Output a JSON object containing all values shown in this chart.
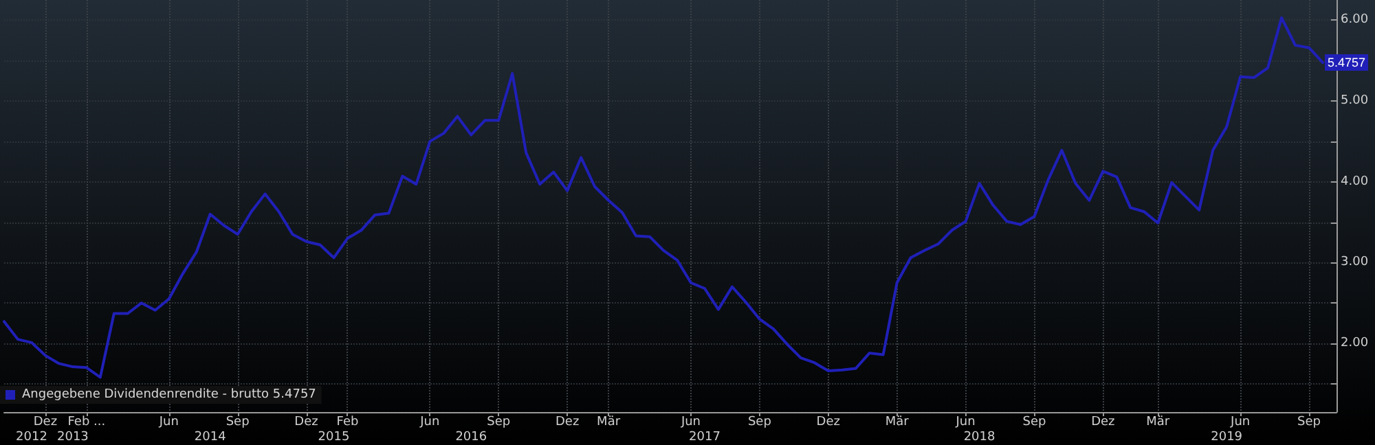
{
  "chart_data": {
    "type": "line",
    "categories": [
      null,
      null,
      "\n2012",
      "Dez",
      null,
      "\n2013",
      "Feb ...",
      null,
      null,
      null,
      null,
      null,
      "Jun",
      null,
      null,
      "\n2014",
      null,
      "Sep",
      null,
      null,
      null,
      null,
      "Dez",
      null,
      "\n2015",
      "Feb",
      null,
      null,
      null,
      null,
      null,
      "Jun",
      null,
      null,
      "\n2016",
      null,
      "Sep",
      null,
      null,
      null,
      null,
      "Dez",
      null,
      null,
      "Mär",
      null,
      null,
      null,
      null,
      null,
      "Jun",
      "\n2017",
      null,
      null,
      null,
      "Sep",
      null,
      null,
      null,
      null,
      "Dez",
      null,
      null,
      null,
      null,
      "Mär",
      null,
      null,
      null,
      null,
      "Jun",
      "\n2018",
      null,
      null,
      null,
      "Sep",
      null,
      null,
      null,
      null,
      "Dez",
      null,
      null,
      null,
      "Mär",
      null,
      null,
      null,
      null,
      "\n2019",
      "Jun",
      null,
      null,
      null,
      null,
      "Sep",
      null,
      null
    ],
    "series": [
      {
        "name": "Angegebene Dividendenrendite - brutto 5.4757",
        "color": "#2020b8",
        "values": [
          2.27,
          2.05,
          2.01,
          1.85,
          1.75,
          1.71,
          1.7,
          1.58,
          2.37,
          2.37,
          2.5,
          2.41,
          2.55,
          2.86,
          3.13,
          3.6,
          3.46,
          3.35,
          3.63,
          3.85,
          3.63,
          3.35,
          3.26,
          3.22,
          3.06,
          3.3,
          3.4,
          3.59,
          3.61,
          4.07,
          3.97,
          4.5,
          4.6,
          4.81,
          4.58,
          4.76,
          4.76,
          5.34,
          4.36,
          3.97,
          4.12,
          3.89,
          4.3,
          3.94,
          3.77,
          3.62,
          3.33,
          3.32,
          3.15,
          3.03,
          2.75,
          2.68,
          2.42,
          2.7,
          2.51,
          2.3,
          2.18,
          1.99,
          1.82,
          1.76,
          1.66,
          1.67,
          1.69,
          1.88,
          1.86,
          2.75,
          3.06,
          3.15,
          3.23,
          3.4,
          3.51,
          3.98,
          3.71,
          3.51,
          3.47,
          3.57,
          4.02,
          4.39,
          3.98,
          3.77,
          4.13,
          4.06,
          3.68,
          3.63,
          3.49,
          3.99,
          3.82,
          3.65,
          4.39,
          4.68,
          5.3,
          5.29,
          5.41,
          6.03,
          5.69,
          5.66,
          5.4757,
          null
        ],
        "value_labels": [
          null,
          null,
          null,
          null,
          null,
          null,
          null,
          null,
          null,
          null,
          null,
          null,
          null,
          null,
          null,
          null,
          null,
          null,
          null,
          null,
          null,
          null,
          null,
          null,
          null,
          null,
          null,
          null,
          null,
          null,
          null,
          null,
          null,
          null,
          null,
          null,
          null,
          null,
          null,
          null,
          null,
          null,
          null,
          null,
          null,
          null,
          null,
          null,
          null,
          null,
          null,
          null,
          null,
          null,
          null,
          null,
          null,
          null,
          null,
          null,
          null,
          null,
          null,
          null,
          null,
          null,
          null,
          null,
          null,
          null,
          null,
          null,
          null,
          null,
          null,
          null,
          null,
          null,
          null,
          null,
          null,
          null,
          null,
          null,
          null,
          null,
          null,
          null,
          null,
          null,
          null,
          null,
          null,
          null,
          null,
          null,
          "5.4757",
          null
        ]
      }
    ],
    "ylim": [
      1.15,
      6.25
    ],
    "yticks": [
      {
        "value": 1.5,
        "label": null
      },
      {
        "value": 2,
        "label": "2.00"
      },
      {
        "value": 2.5,
        "label": null
      },
      {
        "value": 3,
        "label": "3.00"
      },
      {
        "value": 3.5,
        "label": null
      },
      {
        "value": 4,
        "label": "4.00"
      },
      {
        "value": 4.5,
        "label": null
      },
      {
        "value": 5,
        "label": "5.00"
      },
      {
        "value": 5.5,
        "label": null
      },
      {
        "value": 6,
        "label": "6.00"
      }
    ],
    "grid": true,
    "legend": "bottom left",
    "marker": "none",
    "line_style": "solid"
  }
}
